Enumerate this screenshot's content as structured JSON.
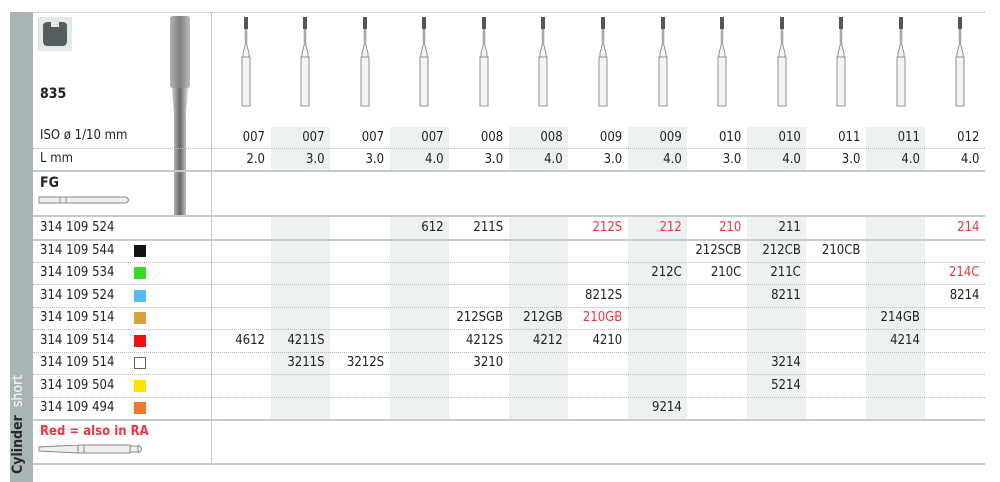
{
  "product": {
    "number": "835",
    "shape_icon": "cylinder-profile-icon",
    "category": "Cylinder",
    "subcategory": "short"
  },
  "labels": {
    "iso": "ISO ø 1/10 mm",
    "length": "L mm",
    "shank": "FG",
    "legend": "Red = also in RA"
  },
  "colors": {
    "red_text": "#ef3340",
    "column_shade": "#edf1f1",
    "sidebar": "#a9b4b4"
  },
  "columns": [
    {
      "iso": "007",
      "length": "2.0"
    },
    {
      "iso": "007",
      "length": "3.0"
    },
    {
      "iso": "007",
      "length": "3.0"
    },
    {
      "iso": "007",
      "length": "4.0"
    },
    {
      "iso": "008",
      "length": "3.0"
    },
    {
      "iso": "008",
      "length": "4.0"
    },
    {
      "iso": "009",
      "length": "3.0"
    },
    {
      "iso": "009",
      "length": "4.0"
    },
    {
      "iso": "010",
      "length": "3.0"
    },
    {
      "iso": "010",
      "length": "4.0"
    },
    {
      "iso": "011",
      "length": "3.0"
    },
    {
      "iso": "011",
      "length": "4.0"
    },
    {
      "iso": "012",
      "length": "4.0"
    }
  ],
  "rows": [
    {
      "ref": "314 109 524",
      "swatch": null,
      "cells": [
        null,
        null,
        null,
        {
          "code": "612"
        },
        {
          "code": "211S"
        },
        null,
        {
          "code": "212S",
          "red": true
        },
        {
          "code": "212",
          "red": true
        },
        {
          "code": "210",
          "red": true
        },
        {
          "code": "211"
        },
        null,
        null,
        {
          "code": "214",
          "red": true
        }
      ]
    },
    {
      "ref": "314 109 544",
      "swatch": "#111111",
      "cells": [
        null,
        null,
        null,
        null,
        null,
        null,
        null,
        null,
        {
          "code": "212SCB"
        },
        {
          "code": "212CB"
        },
        {
          "code": "210CB"
        },
        null,
        null
      ]
    },
    {
      "ref": "314 109 534",
      "swatch": "#33dd22",
      "cells": [
        null,
        null,
        null,
        null,
        null,
        null,
        null,
        {
          "code": "212C"
        },
        {
          "code": "210C"
        },
        {
          "code": "211C"
        },
        null,
        null,
        {
          "code": "214C",
          "red": true
        }
      ]
    },
    {
      "ref": "314 109 524",
      "swatch": "#55bbee",
      "cells": [
        null,
        null,
        null,
        null,
        null,
        null,
        {
          "code": "8212S"
        },
        null,
        null,
        {
          "code": "8211"
        },
        null,
        null,
        {
          "code": "8214"
        }
      ]
    },
    {
      "ref": "314 109 514",
      "swatch": "#dba23a",
      "cells": [
        null,
        null,
        null,
        null,
        {
          "code": "212SGB"
        },
        {
          "code": "212GB"
        },
        {
          "code": "210GB",
          "red": true
        },
        null,
        null,
        null,
        null,
        {
          "code": "214GB"
        },
        null
      ]
    },
    {
      "ref": "314 109 514",
      "swatch": "#ee1111",
      "cells": [
        {
          "code": "4612"
        },
        {
          "code": "4211S"
        },
        null,
        null,
        {
          "code": "4212S"
        },
        {
          "code": "4212"
        },
        {
          "code": "4210"
        },
        null,
        null,
        null,
        null,
        {
          "code": "4214"
        },
        null
      ]
    },
    {
      "ref": "314 109 514",
      "swatch": "#ffffff",
      "cells": [
        null,
        {
          "code": "3211S"
        },
        {
          "code": "3212S"
        },
        null,
        {
          "code": "3210"
        },
        null,
        null,
        null,
        null,
        {
          "code": "3214"
        },
        null,
        null,
        null
      ]
    },
    {
      "ref": "314 109 504",
      "swatch": "#ffe000",
      "cells": [
        null,
        null,
        null,
        null,
        null,
        null,
        null,
        null,
        null,
        {
          "code": "5214"
        },
        null,
        null,
        null
      ]
    },
    {
      "ref": "314 109 494",
      "swatch": "#f07830",
      "cells": [
        null,
        null,
        null,
        null,
        null,
        null,
        null,
        {
          "code": "9214"
        },
        null,
        null,
        null,
        null,
        null
      ]
    }
  ]
}
